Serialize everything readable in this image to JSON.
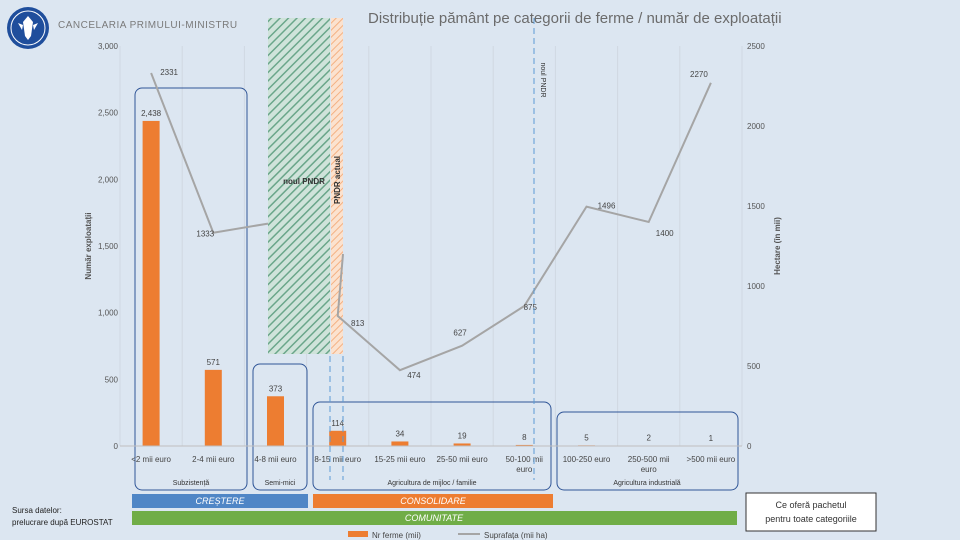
{
  "header": {
    "org_name": "CANCELARIA PRIMULUI-MINISTRU",
    "title": "Distribuție pământ pe categorii de ferme / număr de exploatații"
  },
  "footer": {
    "source_line1": "Sursa datelor:",
    "source_line2": "prelucrare după EUROSTAT"
  },
  "colors": {
    "bars": "#ed7d31",
    "line": "#a5a5a5",
    "group_border": "#2f5597",
    "band_crestere": "#4f86c6",
    "band_consolidare": "#ed7d31",
    "band_comunitate": "#70ad47",
    "hatch_green": "#6aa68a",
    "hatch_orange": "#f4b183",
    "marker_dash": "#5b9bd5"
  },
  "chart_data": {
    "type": "bar",
    "categories": [
      "<2 mii euro",
      "2-4 mii euro",
      "4-8 mii euro",
      "8-15 mii euro",
      "15-25 mii euro",
      "25-50 mii euro",
      "50-100 mii euro",
      "100-250 euro",
      "250-500 mii euro",
      ">500 mii euro"
    ],
    "series": [
      {
        "name": "Nr ferme (mii)",
        "type": "bar",
        "axis": "left",
        "values": [
          2438,
          571,
          373,
          114,
          34,
          19,
          8,
          5,
          2,
          1
        ],
        "labels": [
          "2,438",
          "571",
          "373",
          "114",
          "34",
          "19",
          "8",
          "5",
          "2",
          "1"
        ]
      },
      {
        "name": "Suprafața (mii ha)",
        "type": "line",
        "axis": "right",
        "values": [
          2331,
          1333,
          null,
          813,
          474,
          627,
          875,
          1496,
          1400,
          2270
        ],
        "labels": [
          "2331",
          "1333",
          "",
          "813",
          "474",
          "627",
          "875",
          "1496",
          "1400",
          "2270"
        ]
      }
    ],
    "ylabel": "Număr exploatații",
    "y2label": "Hectare (în mii)",
    "ylim": [
      0,
      3000
    ],
    "y2lim": [
      0,
      2500
    ],
    "yticks": [
      "0",
      "500",
      "1,000",
      "1,500",
      "2,000",
      "2,500",
      "3,000"
    ],
    "y2ticks": [
      "0",
      "500",
      "1000",
      "1500",
      "2000",
      "2500"
    ],
    "grid": true,
    "legend_position": "bottom",
    "annotations": {
      "pndr_current": "PNDR actual",
      "new_pndr": "noul PNDR",
      "new_pndr_vertical": "noul PNDR"
    },
    "groups": [
      {
        "label": "Subzistență"
      },
      {
        "label": "Semi-mici"
      },
      {
        "label": "Agricultura de mijloc / familie"
      },
      {
        "label": "Agricultura industrială"
      }
    ],
    "bands": [
      {
        "label": "CREȘTERE"
      },
      {
        "label": "CONSOLIDARE"
      },
      {
        "label": "COMUNITATE"
      }
    ],
    "callout": "Ce oferă pachetul pentru toate categoriile"
  }
}
